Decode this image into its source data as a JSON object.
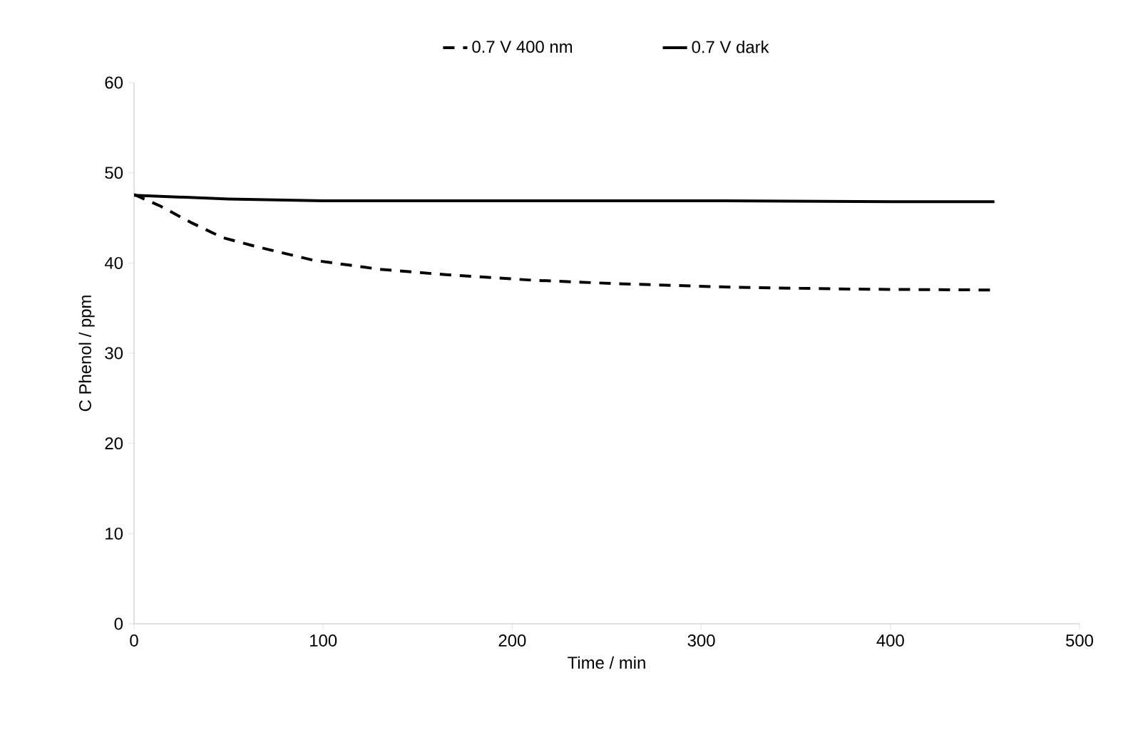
{
  "chart_data": {
    "type": "line",
    "xlabel": "Time / min",
    "ylabel": "C Phenol / ppm",
    "xlim": [
      0,
      500
    ],
    "ylim": [
      0,
      60
    ],
    "xticks": [
      0,
      100,
      200,
      300,
      400,
      500
    ],
    "yticks": [
      0,
      10,
      20,
      30,
      40,
      50,
      60
    ],
    "legend": "top",
    "grid": false,
    "marker": "none",
    "series": [
      {
        "name": "0.7 V 400 nm",
        "color": "#000000",
        "line_style": "dashed",
        "x": [
          0,
          14,
          30,
          47,
          65,
          95,
          130,
          165,
          210,
          256,
          319,
          381,
          455
        ],
        "values": [
          47.6,
          46.3,
          44.5,
          42.8,
          41.8,
          40.3,
          39.3,
          38.7,
          38.1,
          37.7,
          37.3,
          37.1,
          37.0
        ]
      },
      {
        "name": "0.7 V dark",
        "color": "#000000",
        "line_style": "solid",
        "x": [
          0,
          50,
          100,
          200,
          300,
          400,
          455
        ],
        "values": [
          47.5,
          47.1,
          46.9,
          46.9,
          46.9,
          46.8,
          46.8
        ]
      }
    ]
  }
}
